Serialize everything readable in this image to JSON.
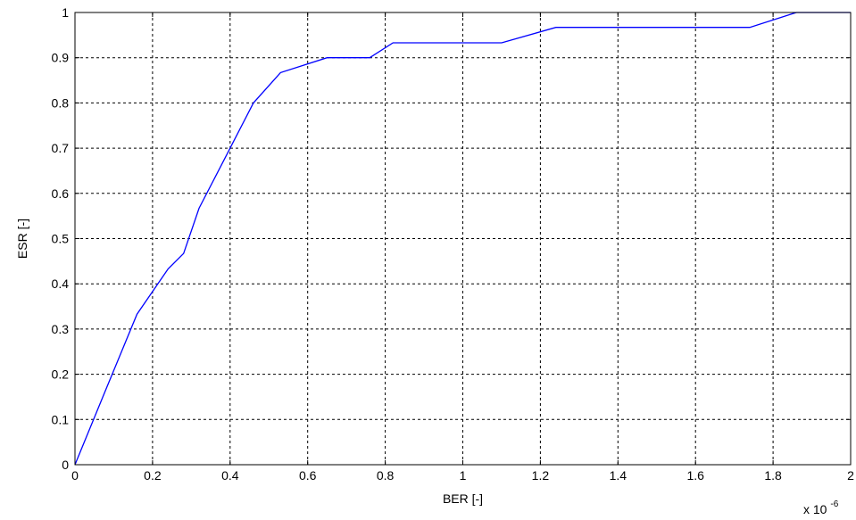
{
  "chart_data": {
    "type": "line",
    "title": "",
    "xlabel": "BER [-]",
    "ylabel": "ESR [-]",
    "x_multiplier_label": "x 10",
    "x_multiplier_exponent": "-6",
    "xlim": [
      0,
      2
    ],
    "ylim": [
      0,
      1
    ],
    "grid": true,
    "x_ticks": [
      0,
      0.2,
      0.4,
      0.6,
      0.8,
      1,
      1.2,
      1.4,
      1.6,
      1.8,
      2
    ],
    "x_tick_labels": [
      "0",
      "0.2",
      "0.4",
      "0.6",
      "0.8",
      "1",
      "1.2",
      "1.4",
      "1.6",
      "1.8",
      "2"
    ],
    "y_ticks": [
      0,
      0.1,
      0.2,
      0.3,
      0.4,
      0.5,
      0.6,
      0.7,
      0.8,
      0.9,
      1
    ],
    "y_tick_labels": [
      "0",
      "0.1",
      "0.2",
      "0.3",
      "0.4",
      "0.5",
      "0.6",
      "0.7",
      "0.8",
      "0.9",
      "1"
    ],
    "series": [
      {
        "color": "#0000ff",
        "x": [
          0,
          0.08,
          0.16,
          0.24,
          0.28,
          0.32,
          0.4,
          0.46,
          0.53,
          0.65,
          0.76,
          0.82,
          1.1,
          1.24,
          1.74,
          1.86,
          2.0
        ],
        "y": [
          0,
          0.167,
          0.333,
          0.433,
          0.467,
          0.567,
          0.7,
          0.8,
          0.867,
          0.9,
          0.9,
          0.933,
          0.933,
          0.967,
          0.967,
          1.0,
          1.0
        ]
      }
    ]
  }
}
